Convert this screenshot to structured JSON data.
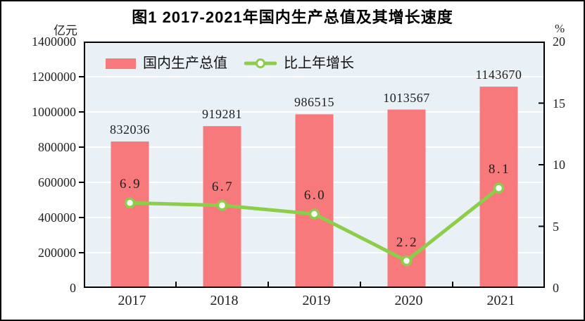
{
  "title": "图1  2017-2021年国内生产总值及其增长速度",
  "colors": {
    "bar": "#f8797b",
    "line": "#8cce49",
    "marker_fill": "#ffffff",
    "plot_bg": "#e9f1f6",
    "grid": "#ffffff",
    "axis": "#000000",
    "text": "#1f1f1f"
  },
  "chart_data": {
    "type": "bar+line",
    "title": "图1  2017-2021年国内生产总值及其增长速度",
    "categories": [
      "2017",
      "2018",
      "2019",
      "2020",
      "2021"
    ],
    "series": [
      {
        "name": "国内生产总值",
        "type": "bar",
        "axis": "left",
        "values": [
          832036,
          919281,
          986515,
          1013567,
          1143670
        ]
      },
      {
        "name": "比上年增长",
        "type": "line",
        "axis": "right",
        "values": [
          6.9,
          6.7,
          6.0,
          2.2,
          8.1
        ]
      }
    ],
    "left_axis": {
      "label": "亿元",
      "min": 0,
      "max": 1400000,
      "tick_step": 200000
    },
    "right_axis": {
      "label": "%",
      "min": 0,
      "max": 20,
      "tick_step": 5
    },
    "grid": true,
    "legend_position": "top-left-inside"
  }
}
